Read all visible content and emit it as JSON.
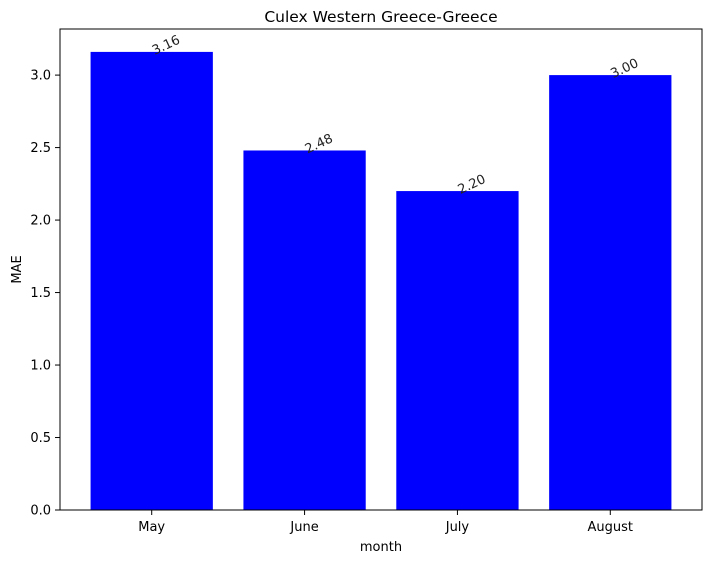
{
  "chart_data": {
    "type": "bar",
    "title": "Culex Western Greece-Greece",
    "xlabel": "month",
    "ylabel": "MAE",
    "categories": [
      "May",
      "June",
      "July",
      "August"
    ],
    "values": [
      3.16,
      2.48,
      2.2,
      3.0
    ],
    "data_labels": [
      "3.16",
      "2.48",
      "2.20",
      "3.00"
    ],
    "yticks": [
      0.0,
      0.5,
      1.0,
      1.5,
      2.0,
      2.5,
      3.0
    ],
    "ytick_labels": [
      "0.0",
      "0.5",
      "1.0",
      "1.5",
      "2.0",
      "2.5",
      "3.0"
    ],
    "ylim": [
      0,
      3.318
    ],
    "bar_color": "#0000ff",
    "grid": false,
    "legend": "none"
  }
}
